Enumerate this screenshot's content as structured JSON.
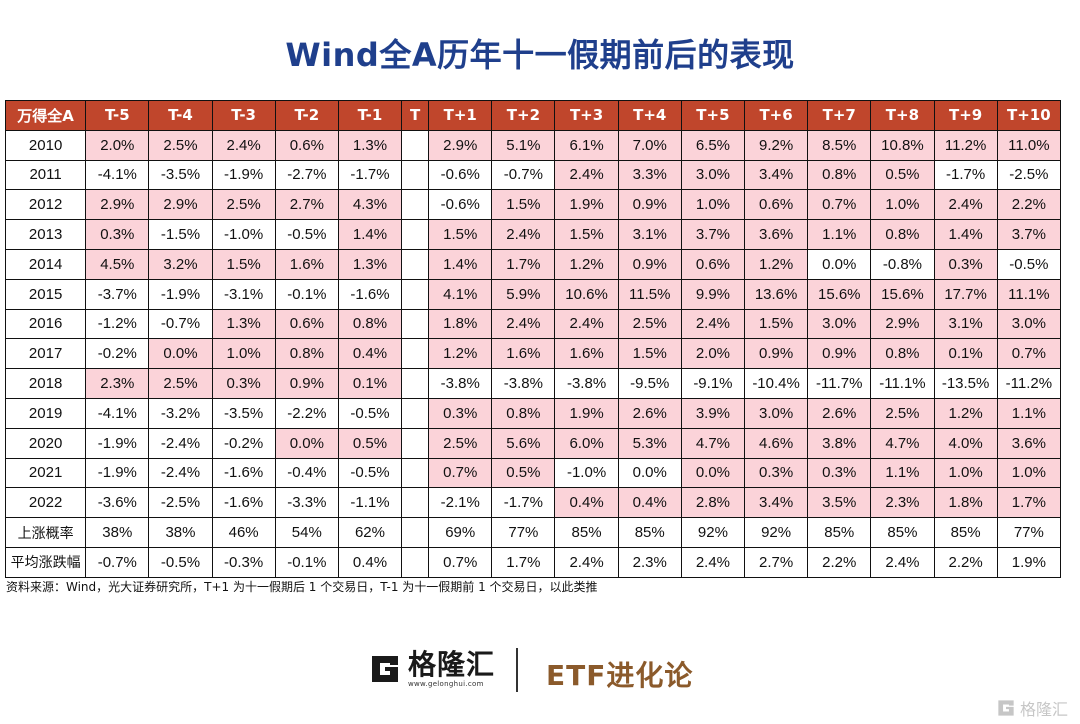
{
  "title": "Wind全A历年十一假期前后的表现",
  "table": {
    "headers": [
      "万得全A",
      "T-5",
      "T-4",
      "T-3",
      "T-2",
      "T-1",
      "T",
      "T+1",
      "T+2",
      "T+3",
      "T+4",
      "T+5",
      "T+6",
      "T+7",
      "T+8",
      "T+9",
      "T+10"
    ],
    "rows": [
      {
        "label": "2010",
        "cells": [
          "2.0%",
          "2.5%",
          "2.4%",
          "0.6%",
          "1.3%",
          "",
          "2.9%",
          "5.1%",
          "6.1%",
          "7.0%",
          "6.5%",
          "9.2%",
          "8.5%",
          "10.8%",
          "11.2%",
          "11.0%"
        ]
      },
      {
        "label": "2011",
        "cells": [
          "-4.1%",
          "-3.5%",
          "-1.9%",
          "-2.7%",
          "-1.7%",
          "",
          "-0.6%",
          "-0.7%",
          "2.4%",
          "3.3%",
          "3.0%",
          "3.4%",
          "0.8%",
          "0.5%",
          "-1.7%",
          "-2.5%"
        ]
      },
      {
        "label": "2012",
        "cells": [
          "2.9%",
          "2.9%",
          "2.5%",
          "2.7%",
          "4.3%",
          "",
          "-0.6%",
          "1.5%",
          "1.9%",
          "0.9%",
          "1.0%",
          "0.6%",
          "0.7%",
          "1.0%",
          "2.4%",
          "2.2%"
        ]
      },
      {
        "label": "2013",
        "cells": [
          "0.3%",
          "-1.5%",
          "-1.0%",
          "-0.5%",
          "1.4%",
          "",
          "1.5%",
          "2.4%",
          "1.5%",
          "3.1%",
          "3.7%",
          "3.6%",
          "1.1%",
          "0.8%",
          "1.4%",
          "3.7%"
        ]
      },
      {
        "label": "2014",
        "cells": [
          "4.5%",
          "3.2%",
          "1.5%",
          "1.6%",
          "1.3%",
          "",
          "1.4%",
          "1.7%",
          "1.2%",
          "0.9%",
          "0.6%",
          "1.2%",
          "0.0%",
          "-0.8%",
          "0.3%",
          "-0.5%"
        ]
      },
      {
        "label": "2015",
        "cells": [
          "-3.7%",
          "-1.9%",
          "-3.1%",
          "-0.1%",
          "-1.6%",
          "",
          "4.1%",
          "5.9%",
          "10.6%",
          "11.5%",
          "9.9%",
          "13.6%",
          "15.6%",
          "15.6%",
          "17.7%",
          "11.1%"
        ]
      },
      {
        "label": "2016",
        "cells": [
          "-1.2%",
          "-0.7%",
          "1.3%",
          "0.6%",
          "0.8%",
          "",
          "1.8%",
          "2.4%",
          "2.4%",
          "2.5%",
          "2.4%",
          "1.5%",
          "3.0%",
          "2.9%",
          "3.1%",
          "3.0%"
        ]
      },
      {
        "label": "2017",
        "cells": [
          "-0.2%",
          "0.0%",
          "1.0%",
          "0.8%",
          "0.4%",
          "",
          "1.2%",
          "1.6%",
          "1.6%",
          "1.5%",
          "2.0%",
          "0.9%",
          "0.9%",
          "0.8%",
          "0.1%",
          "0.7%"
        ]
      },
      {
        "label": "2018",
        "cells": [
          "2.3%",
          "2.5%",
          "0.3%",
          "0.9%",
          "0.1%",
          "",
          "-3.8%",
          "-3.8%",
          "-3.8%",
          "-9.5%",
          "-9.1%",
          "-10.4%",
          "-11.7%",
          "-11.1%",
          "-13.5%",
          "-11.2%"
        ]
      },
      {
        "label": "2019",
        "cells": [
          "-4.1%",
          "-3.2%",
          "-3.5%",
          "-2.2%",
          "-0.5%",
          "",
          "0.3%",
          "0.8%",
          "1.9%",
          "2.6%",
          "3.9%",
          "3.0%",
          "2.6%",
          "2.5%",
          "1.2%",
          "1.1%"
        ]
      },
      {
        "label": "2020",
        "cells": [
          "-1.9%",
          "-2.4%",
          "-0.2%",
          "0.0%",
          "0.5%",
          "",
          "2.5%",
          "5.6%",
          "6.0%",
          "5.3%",
          "4.7%",
          "4.6%",
          "3.8%",
          "4.7%",
          "4.0%",
          "3.6%"
        ]
      },
      {
        "label": "2021",
        "cells": [
          "-1.9%",
          "-2.4%",
          "-1.6%",
          "-0.4%",
          "-0.5%",
          "",
          "0.7%",
          "0.5%",
          "-1.0%",
          "0.0%",
          "0.0%",
          "0.3%",
          "0.3%",
          "1.1%",
          "1.0%",
          "1.0%"
        ]
      },
      {
        "label": "2022",
        "cells": [
          "-3.6%",
          "-2.5%",
          "-1.6%",
          "-3.3%",
          "-1.1%",
          "",
          "-2.1%",
          "-1.7%",
          "0.4%",
          "0.4%",
          "2.8%",
          "3.4%",
          "3.5%",
          "2.3%",
          "1.8%",
          "1.7%"
        ]
      }
    ],
    "shaded": [
      [
        1,
        1,
        1,
        1,
        1,
        0,
        1,
        1,
        1,
        1,
        1,
        1,
        1,
        1,
        1,
        1
      ],
      [
        0,
        0,
        0,
        0,
        0,
        0,
        0,
        0,
        1,
        1,
        1,
        1,
        1,
        1,
        0,
        0
      ],
      [
        1,
        1,
        1,
        1,
        1,
        0,
        0,
        1,
        1,
        1,
        1,
        1,
        1,
        1,
        1,
        1
      ],
      [
        1,
        0,
        0,
        0,
        1,
        0,
        1,
        1,
        1,
        1,
        1,
        1,
        1,
        1,
        1,
        1
      ],
      [
        1,
        1,
        1,
        1,
        1,
        0,
        1,
        1,
        1,
        1,
        1,
        1,
        0,
        0,
        1,
        0
      ],
      [
        0,
        0,
        0,
        0,
        0,
        0,
        1,
        1,
        1,
        1,
        1,
        1,
        1,
        1,
        1,
        1
      ],
      [
        0,
        0,
        1,
        1,
        1,
        0,
        1,
        1,
        1,
        1,
        1,
        1,
        1,
        1,
        1,
        1
      ],
      [
        0,
        1,
        1,
        1,
        1,
        0,
        1,
        1,
        1,
        1,
        1,
        1,
        1,
        1,
        1,
        1
      ],
      [
        1,
        1,
        1,
        1,
        1,
        0,
        0,
        0,
        0,
        0,
        0,
        0,
        0,
        0,
        0,
        0
      ],
      [
        0,
        0,
        0,
        0,
        0,
        0,
        1,
        1,
        1,
        1,
        1,
        1,
        1,
        1,
        1,
        1
      ],
      [
        0,
        0,
        0,
        1,
        1,
        0,
        1,
        1,
        1,
        1,
        1,
        1,
        1,
        1,
        1,
        1
      ],
      [
        0,
        0,
        0,
        0,
        0,
        0,
        1,
        1,
        0,
        0,
        1,
        1,
        1,
        1,
        1,
        1
      ],
      [
        0,
        0,
        0,
        0,
        0,
        0,
        0,
        0,
        1,
        1,
        1,
        1,
        1,
        1,
        1,
        1
      ]
    ],
    "summary": [
      {
        "label": "上涨概率",
        "cells": [
          "38%",
          "38%",
          "46%",
          "54%",
          "62%",
          "",
          "69%",
          "77%",
          "85%",
          "85%",
          "92%",
          "92%",
          "85%",
          "85%",
          "85%",
          "77%"
        ]
      },
      {
        "label": "平均涨跌幅",
        "cells": [
          "-0.7%",
          "-0.5%",
          "-0.3%",
          "-0.1%",
          "0.4%",
          "",
          "0.7%",
          "1.7%",
          "2.4%",
          "2.3%",
          "2.4%",
          "2.7%",
          "2.2%",
          "2.4%",
          "2.2%",
          "1.9%"
        ]
      }
    ]
  },
  "source": "资料来源：Wind，光大证券研究所，T+1 为十一假期后 1 个交易日，T-1 为十一假期前 1 个交易日，以此类推",
  "logo_left": {
    "name": "格隆汇",
    "url": "www.gelonghui.com"
  },
  "logo_right": "ETF进化论",
  "watermark": "格隆汇",
  "colors": {
    "title": "#1f3f8c",
    "header_bg": "#c0462c",
    "positive_bg": "#fbd3d9",
    "brand_brown": "#8b5a2b"
  }
}
